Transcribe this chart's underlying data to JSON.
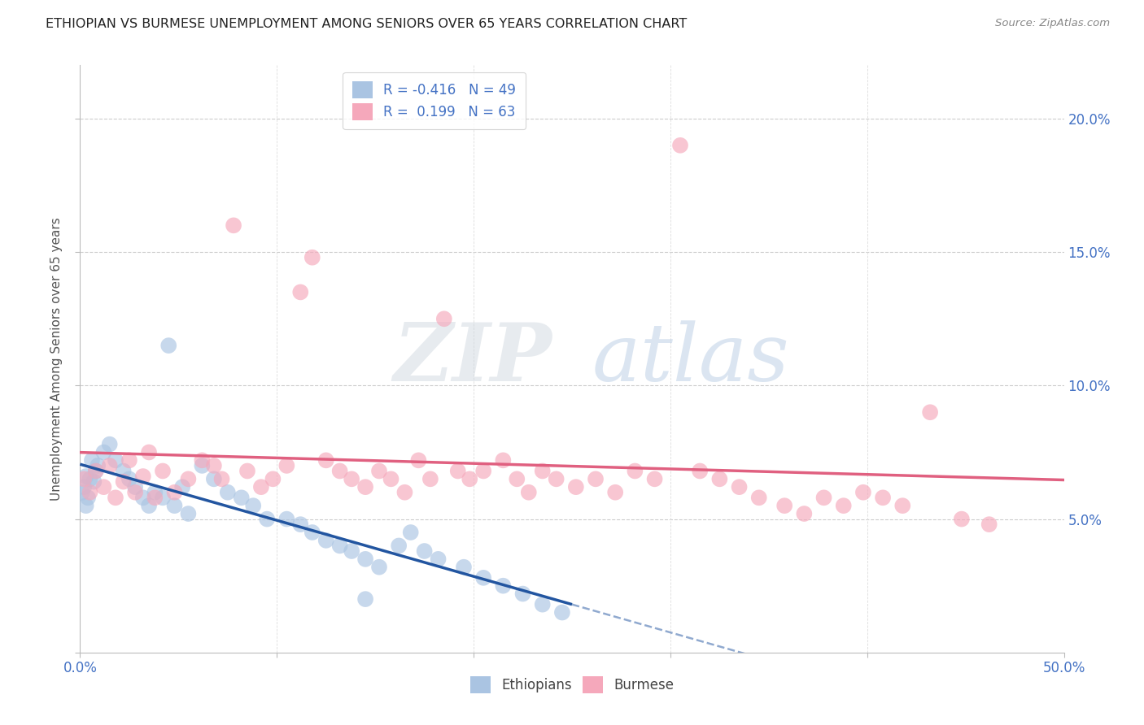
{
  "title": "ETHIOPIAN VS BURMESE UNEMPLOYMENT AMONG SENIORS OVER 65 YEARS CORRELATION CHART",
  "source": "Source: ZipAtlas.com",
  "ylabel": "Unemployment Among Seniors over 65 years",
  "xlim": [
    0.0,
    0.5
  ],
  "ylim": [
    0.0,
    0.22
  ],
  "xticks": [
    0.0,
    0.1,
    0.2,
    0.3,
    0.4,
    0.5
  ],
  "xticklabels_show": [
    "0.0%",
    "",
    "",
    "",
    "",
    "50.0%"
  ],
  "yticks": [
    0.0,
    0.05,
    0.1,
    0.15,
    0.2
  ],
  "yticklabels_right": [
    "",
    "5.0%",
    "10.0%",
    "15.0%",
    "20.0%"
  ],
  "legend_R_eth": "-0.416",
  "legend_N_eth": "49",
  "legend_R_bur": "0.199",
  "legend_N_bur": "63",
  "eth_color": "#aac4e2",
  "bur_color": "#f5a8bb",
  "eth_line_color": "#2255a0",
  "bur_line_color": "#e06080",
  "watermark_zip": "ZIP",
  "watermark_atlas": "atlas",
  "eth_x": [
    0.005,
    0.003,
    0.008,
    0.001,
    0.006,
    0.004,
    0.007,
    0.002,
    0.009,
    0.003,
    0.012,
    0.015,
    0.018,
    0.022,
    0.025,
    0.028,
    0.032,
    0.035,
    0.038,
    0.042,
    0.045,
    0.048,
    0.052,
    0.055,
    0.062,
    0.068,
    0.075,
    0.082,
    0.088,
    0.095,
    0.105,
    0.112,
    0.118,
    0.125,
    0.132,
    0.138,
    0.145,
    0.152,
    0.162,
    0.168,
    0.175,
    0.182,
    0.195,
    0.205,
    0.215,
    0.225,
    0.235,
    0.245,
    0.145
  ],
  "eth_y": [
    0.065,
    0.055,
    0.068,
    0.06,
    0.072,
    0.058,
    0.064,
    0.062,
    0.07,
    0.066,
    0.075,
    0.078,
    0.072,
    0.068,
    0.065,
    0.062,
    0.058,
    0.055,
    0.06,
    0.058,
    0.115,
    0.055,
    0.062,
    0.052,
    0.07,
    0.065,
    0.06,
    0.058,
    0.055,
    0.05,
    0.05,
    0.048,
    0.045,
    0.042,
    0.04,
    0.038,
    0.035,
    0.032,
    0.04,
    0.045,
    0.038,
    0.035,
    0.032,
    0.028,
    0.025,
    0.022,
    0.018,
    0.015,
    0.02
  ],
  "bur_x": [
    0.002,
    0.005,
    0.008,
    0.012,
    0.015,
    0.018,
    0.022,
    0.025,
    0.028,
    0.032,
    0.035,
    0.038,
    0.042,
    0.048,
    0.055,
    0.062,
    0.068,
    0.072,
    0.078,
    0.085,
    0.092,
    0.098,
    0.105,
    0.112,
    0.118,
    0.125,
    0.132,
    0.138,
    0.145,
    0.152,
    0.158,
    0.165,
    0.172,
    0.178,
    0.185,
    0.192,
    0.198,
    0.205,
    0.215,
    0.222,
    0.228,
    0.235,
    0.242,
    0.252,
    0.262,
    0.272,
    0.282,
    0.292,
    0.305,
    0.315,
    0.325,
    0.335,
    0.345,
    0.358,
    0.368,
    0.378,
    0.388,
    0.398,
    0.408,
    0.418,
    0.432,
    0.448,
    0.462
  ],
  "bur_y": [
    0.065,
    0.06,
    0.068,
    0.062,
    0.07,
    0.058,
    0.064,
    0.072,
    0.06,
    0.066,
    0.075,
    0.058,
    0.068,
    0.06,
    0.065,
    0.072,
    0.07,
    0.065,
    0.16,
    0.068,
    0.062,
    0.065,
    0.07,
    0.135,
    0.148,
    0.072,
    0.068,
    0.065,
    0.062,
    0.068,
    0.065,
    0.06,
    0.072,
    0.065,
    0.125,
    0.068,
    0.065,
    0.068,
    0.072,
    0.065,
    0.06,
    0.068,
    0.065,
    0.062,
    0.065,
    0.06,
    0.068,
    0.065,
    0.19,
    0.068,
    0.065,
    0.062,
    0.058,
    0.055,
    0.052,
    0.058,
    0.055,
    0.06,
    0.058,
    0.055,
    0.09,
    0.05,
    0.048
  ]
}
